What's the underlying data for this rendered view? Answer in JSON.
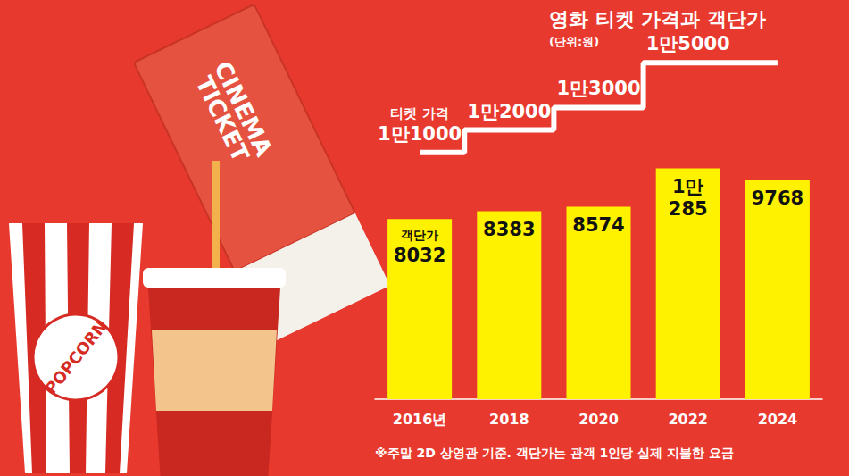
{
  "chart_data": {
    "type": "bar",
    "title": "영화 티켓 가격과 객단가",
    "subtitle": "(단위:원)",
    "footnote": "※주말 2D 상영관 기준. 객단가는 관객 1인당 실제 지불한 요금",
    "annotations": [
      "CINEMA TICKET",
      "POPCORN"
    ],
    "categories": [
      "2016년",
      "2018",
      "2020",
      "2022",
      "2024"
    ],
    "series": [
      {
        "name": "티켓 가격",
        "type": "line",
        "line_style": "step",
        "color": "#ffffff",
        "values": [
          11000,
          12000,
          13000,
          15000,
          15000
        ],
        "value_labels": [
          "1만1000",
          "1만2000",
          "1만3000",
          "1만5000",
          null
        ]
      },
      {
        "name": "객단가",
        "type": "bar",
        "color": "#fff200",
        "values": [
          8032,
          8383,
          8574,
          10285,
          9768
        ],
        "value_labels": [
          "8032",
          "8383",
          "8574",
          "1만285",
          "9768"
        ]
      }
    ],
    "ylim": [
      0,
      16000
    ],
    "grid": false,
    "tick_labels": "x",
    "data_labels": true
  }
}
